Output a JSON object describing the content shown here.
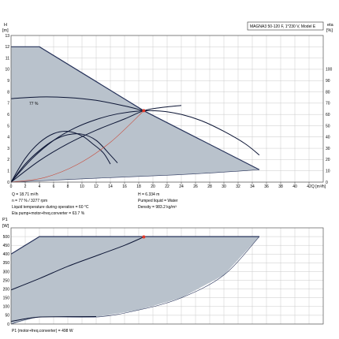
{
  "colors": {
    "region_fill": "#b9c2cc",
    "region_edge": "#26325a",
    "curve": "#0c1535",
    "grid": "#c9c9c9",
    "system_curve": "#c94a3a",
    "duty_point": "#e23a2a",
    "background": "#ffffff"
  },
  "chart_data": [
    {
      "type": "line",
      "title": "MAGNA3 50-120 F, 1*230 V, Model E",
      "xlabel": "Q [m³/h]",
      "ylabel": "H [m]",
      "ylabel_right": "eta [%]",
      "xlim": [
        0,
        44
      ],
      "ylim": [
        0,
        13
      ],
      "y2lim": [
        0,
        130
      ],
      "xticks": [
        0,
        2,
        4,
        6,
        8,
        10,
        12,
        14,
        16,
        18,
        20,
        22,
        24,
        26,
        28,
        30,
        32,
        34,
        36,
        38,
        40,
        42
      ],
      "yticks": [
        0,
        1,
        2,
        3,
        4,
        5,
        6,
        7,
        8,
        9,
        10,
        11,
        12,
        13
      ],
      "y2ticks": [
        0,
        10,
        20,
        30,
        40,
        50,
        60,
        70,
        80,
        90,
        100
      ],
      "grid": true,
      "operating_region": {
        "upper": [
          [
            0,
            12
          ],
          [
            4,
            12
          ],
          [
            18.7,
            6.33
          ],
          [
            35,
            1.1
          ]
        ],
        "lower": [
          [
            0,
            0
          ],
          [
            14,
            0.4
          ],
          [
            25,
            0.7
          ],
          [
            35,
            1.1
          ]
        ]
      },
      "series": [
        {
          "name": "77 %",
          "points": [
            [
              0,
              7.4
            ],
            [
              4,
              7.55
            ],
            [
              8,
              7.5
            ],
            [
              12,
              7.25
            ],
            [
              16,
              6.75
            ],
            [
              18.7,
              6.33
            ]
          ]
        },
        {
          "points": [
            [
              0,
              0
            ],
            [
              3,
              2.1
            ],
            [
              6,
              3.7
            ],
            [
              9,
              4.8
            ],
            [
              12,
              5.55
            ],
            [
              15,
              6.05
            ],
            [
              18,
              6.3
            ],
            [
              21,
              6.3
            ],
            [
              24,
              6.0
            ],
            [
              27,
              5.4
            ],
            [
              30,
              4.5
            ],
            [
              33,
              3.4
            ],
            [
              35,
              2.4
            ]
          ]
        },
        {
          "points": [
            [
              0,
              0
            ],
            [
              2,
              1.6
            ],
            [
              4,
              2.8
            ],
            [
              6,
              3.7
            ],
            [
              8,
              4.2
            ],
            [
              10,
              4.25
            ],
            [
              12,
              3.7
            ],
            [
              14,
              2.4
            ],
            [
              15,
              1.7
            ]
          ]
        },
        {
          "points": [
            [
              0,
              0
            ],
            [
              2,
              2.1
            ],
            [
              4,
              3.5
            ],
            [
              6,
              4.3
            ],
            [
              8,
              4.5
            ],
            [
              10,
              4.1
            ],
            [
              11.5,
              3.4
            ],
            [
              13,
              2.6
            ],
            [
              14,
              1.6
            ]
          ]
        },
        {
          "points": [
            [
              0,
              0
            ],
            [
              4,
              1.9
            ],
            [
              8,
              3.4
            ],
            [
              12,
              4.6
            ],
            [
              16,
              5.6
            ],
            [
              18.7,
              6.33
            ],
            [
              21,
              6.6
            ],
            [
              24,
              6.8
            ]
          ]
        }
      ],
      "system_curve": [
        [
          0,
          0
        ],
        [
          4.7,
          0.4
        ],
        [
          9.4,
          1.58
        ],
        [
          14,
          3.53
        ],
        [
          18.71,
          6.334
        ]
      ],
      "duty_point": {
        "q": 18.71,
        "h": 6.334
      }
    },
    {
      "type": "line",
      "xlabel": "",
      "ylabel": "P1 [W]",
      "xlim": [
        0,
        44
      ],
      "ylim": [
        0,
        550
      ],
      "yticks": [
        0,
        50,
        100,
        150,
        200,
        250,
        300,
        350,
        400,
        450,
        500
      ],
      "grid": true,
      "power_region": {
        "upper": [
          [
            0,
            400
          ],
          [
            4,
            500
          ],
          [
            35,
            500
          ]
        ],
        "lower": [
          [
            0,
            0
          ],
          [
            4,
            40
          ],
          [
            12,
            40
          ],
          [
            18,
            80
          ],
          [
            24,
            150
          ],
          [
            30,
            280
          ],
          [
            35,
            500
          ]
        ]
      },
      "series": [
        {
          "points": [
            [
              0,
              195
            ],
            [
              4,
              260
            ],
            [
              8,
              330
            ],
            [
              12,
              390
            ],
            [
              16,
              450
            ],
            [
              18.71,
              498
            ]
          ]
        },
        {
          "points": [
            [
              0,
              15
            ],
            [
              2,
              30
            ],
            [
              4,
              40
            ],
            [
              8,
              42
            ],
            [
              12,
              43
            ]
          ]
        }
      ],
      "duty_point": {
        "q": 18.71,
        "p": 498
      }
    }
  ],
  "info": {
    "box_title": "MAGNA3 50-120 F, 1*230 V, Model E",
    "left": [
      "Q = 18.71 m³/h",
      "n = 77 % / 3277 rpm",
      "Liquid temperature during operation = 60 °C",
      "Eta pump+motor+freq.converter = 63.7 %"
    ],
    "right": [
      "H = 6.334 m",
      "Pumped liquid = Water",
      "Density = 983.2 kg/m³"
    ],
    "bottom": "P1 (motor+freq.converter) = 498 W"
  },
  "labels": {
    "top_ylabel": "H",
    "top_yunit": "[m]",
    "eta_label": "eta",
    "eta_unit": "[%]",
    "q_label": "Q [m³/h]",
    "bottom_ylabel": "P1",
    "bottom_yunit": "[W]",
    "eff_label": "77 %"
  }
}
